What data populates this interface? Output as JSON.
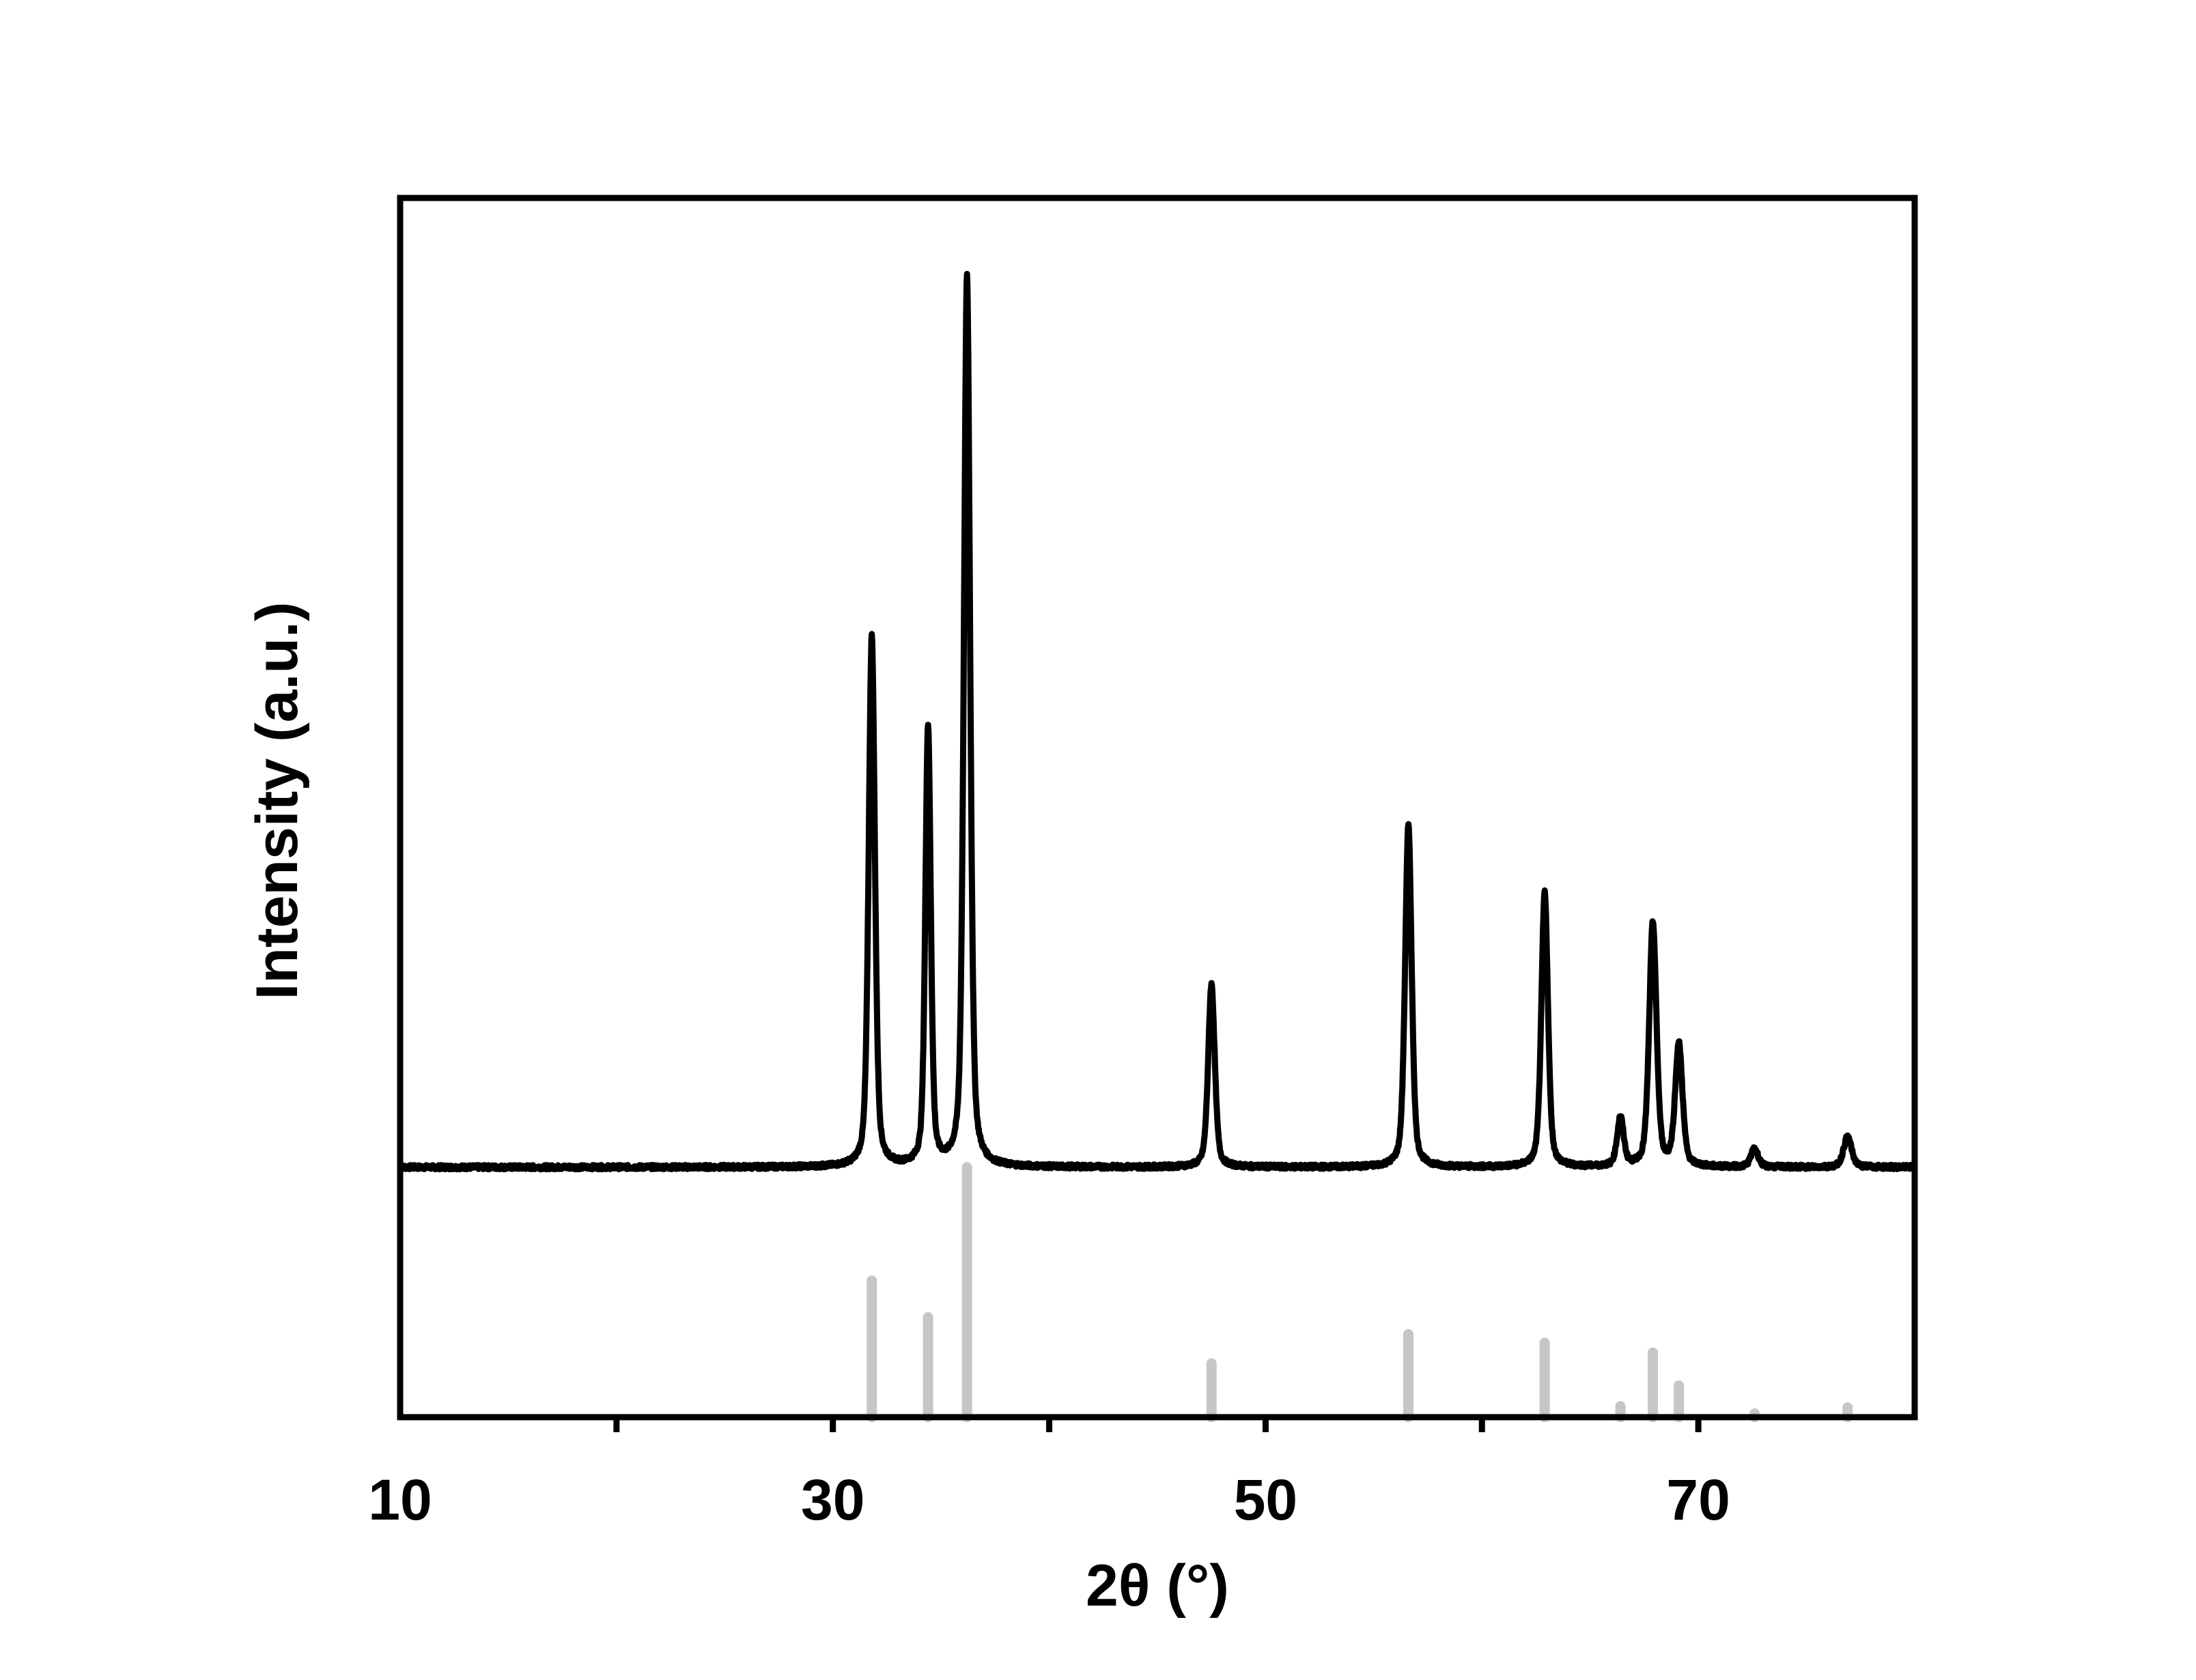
{
  "chart_data": {
    "type": "line",
    "title": "",
    "xlabel": "2θ (°)",
    "ylabel": "Intensity (a.u.)",
    "xlim": [
      10,
      80
    ],
    "ylim": [
      0,
      100
    ],
    "x_tick_labels": [
      "10",
      "30",
      "50",
      "70"
    ],
    "x_major_ticks": [
      10,
      30,
      50,
      70
    ],
    "x_minor_ticks": [
      20,
      40,
      60,
      80
    ],
    "y_ticks_shown": false,
    "grid": false,
    "legend": "none",
    "colors": {
      "pattern": "#000000",
      "reference": "#c6c6c6",
      "frame": "#000000"
    },
    "series": [
      {
        "kind": "measured-pattern",
        "baseline": 20.5,
        "peaks": [
          {
            "x": 31.8,
            "y": 64.0
          },
          {
            "x": 34.4,
            "y": 56.5
          },
          {
            "x": 36.2,
            "y": 93.5
          },
          {
            "x": 47.5,
            "y": 35.5
          },
          {
            "x": 56.6,
            "y": 48.5
          },
          {
            "x": 62.9,
            "y": 43.0
          },
          {
            "x": 66.4,
            "y": 24.5
          },
          {
            "x": 67.9,
            "y": 40.5
          },
          {
            "x": 69.1,
            "y": 30.5
          },
          {
            "x": 72.6,
            "y": 22.0
          },
          {
            "x": 76.9,
            "y": 23.0
          }
        ]
      },
      {
        "kind": "reference-sticks",
        "sticks": [
          {
            "x": 31.8,
            "y": 11.2
          },
          {
            "x": 34.4,
            "y": 8.2
          },
          {
            "x": 36.2,
            "y": 20.5
          },
          {
            "x": 47.5,
            "y": 4.4
          },
          {
            "x": 56.6,
            "y": 6.8
          },
          {
            "x": 62.9,
            "y": 6.1
          },
          {
            "x": 66.4,
            "y": 0.9
          },
          {
            "x": 67.9,
            "y": 5.3
          },
          {
            "x": 69.1,
            "y": 2.6
          },
          {
            "x": 72.6,
            "y": 0.3
          },
          {
            "x": 76.9,
            "y": 0.8
          }
        ]
      }
    ]
  }
}
